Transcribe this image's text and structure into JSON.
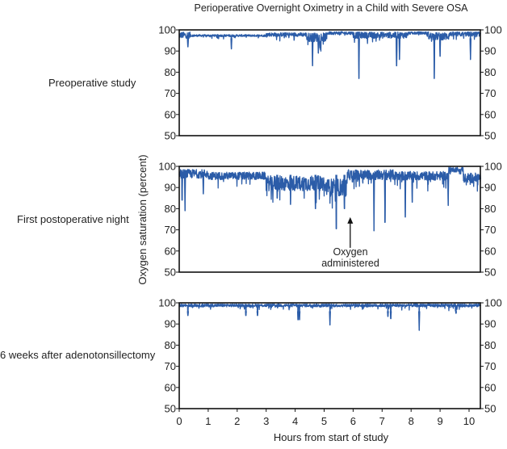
{
  "chart_data": {
    "type": "line",
    "title": "Perioperative Overnight Oximetry in a Child with Severe OSA",
    "xlabel": "Hours from start of study",
    "ylabel": "Oxygen saturation (percent)",
    "xlim": [
      0,
      10.4
    ],
    "ylim": [
      50,
      100
    ],
    "xticks": [
      0,
      1,
      2,
      3,
      4,
      5,
      6,
      7,
      8,
      9,
      10
    ],
    "yticks": [
      50,
      60,
      70,
      80,
      90,
      100
    ],
    "line_color": "#2b5ca8",
    "panels": [
      {
        "label": "Preoperative study",
        "baseline": [
          [
            0,
            0.4,
            97.5,
            2.5
          ],
          [
            0.4,
            3.0,
            97.3,
            0.8
          ],
          [
            3.0,
            4.4,
            97.8,
            1.5
          ],
          [
            4.4,
            5.1,
            96.5,
            3.5
          ],
          [
            5.1,
            6.0,
            98.5,
            1.2
          ],
          [
            6.0,
            7.9,
            97.5,
            2.5
          ],
          [
            7.9,
            8.6,
            98.5,
            1
          ],
          [
            8.6,
            9.3,
            97,
            3
          ],
          [
            9.3,
            10.4,
            98,
            1.8
          ]
        ],
        "dips": [
          [
            0.3,
            92
          ],
          [
            1.8,
            91
          ],
          [
            4.6,
            83
          ],
          [
            4.8,
            89
          ],
          [
            6.2,
            77
          ],
          [
            7.5,
            83
          ],
          [
            7.6,
            86
          ],
          [
            8.8,
            77
          ],
          [
            9.0,
            87.5
          ],
          [
            10.05,
            86
          ]
        ]
      },
      {
        "label": "First postoperative night",
        "baseline": [
          [
            0,
            1.0,
            96.5,
            3.5
          ],
          [
            1.0,
            3.0,
            95.5,
            3
          ],
          [
            3.0,
            5.0,
            92,
            6
          ],
          [
            5.0,
            5.8,
            90,
            7
          ],
          [
            5.8,
            7.4,
            96,
            4
          ],
          [
            7.4,
            9.3,
            95.5,
            3.5
          ],
          [
            9.3,
            9.8,
            98.5,
            2
          ],
          [
            9.8,
            10.4,
            94.5,
            4
          ]
        ],
        "dips": [
          [
            0.1,
            84
          ],
          [
            0.2,
            79
          ],
          [
            0.83,
            87
          ],
          [
            3.38,
            85
          ],
          [
            3.84,
            82
          ],
          [
            4.7,
            80
          ],
          [
            5.42,
            70.5
          ],
          [
            5.7,
            80
          ],
          [
            6.72,
            69.5
          ],
          [
            7.1,
            73.5
          ],
          [
            7.8,
            76
          ],
          [
            8.04,
            83
          ],
          [
            9.28,
            81.5
          ]
        ],
        "annotation": {
          "text_line1": "Oxygen",
          "text_line2": "administered",
          "hour": 5.9,
          "arrow_value": 76
        }
      },
      {
        "label": "6 weeks after adenotonsillectomy",
        "baseline": [
          [
            0,
            10.4,
            98.8,
            1.2
          ]
        ],
        "dips": [
          [
            0.3,
            94
          ],
          [
            2.3,
            94
          ],
          [
            2.7,
            94
          ],
          [
            4.1,
            92
          ],
          [
            4.15,
            92
          ],
          [
            5.2,
            89.5
          ],
          [
            7.2,
            93.5
          ],
          [
            7.3,
            92.5
          ],
          [
            8.28,
            87
          ],
          [
            9.55,
            95
          ]
        ]
      }
    ]
  }
}
